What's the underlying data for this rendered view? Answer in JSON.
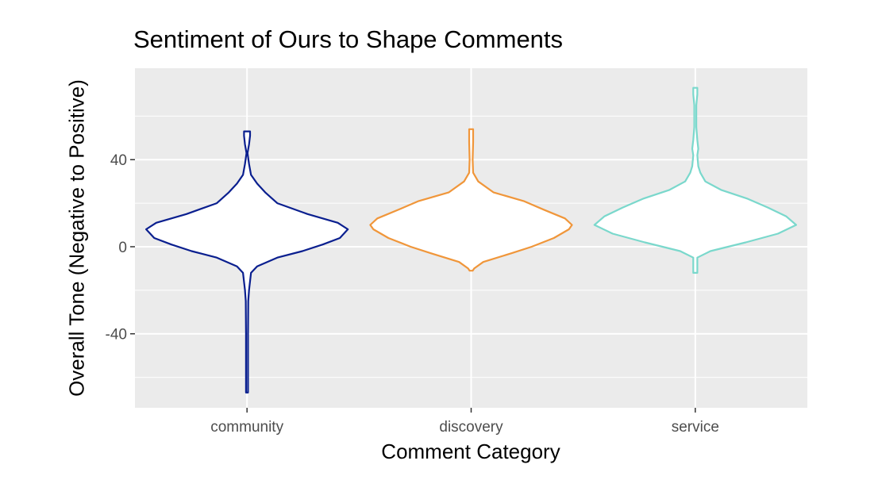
{
  "chart_data": {
    "type": "violin",
    "title": "Sentiment of Ours to Shape Comments",
    "xlabel": "Comment Category",
    "ylabel": "Overall Tone (Negative to Positive)",
    "categories": [
      "community",
      "discovery",
      "service"
    ],
    "ylim": [
      -74,
      82
    ],
    "yticks": [
      -40,
      0,
      40
    ],
    "yticklabels": [
      "-40",
      "0",
      "40"
    ],
    "grid": true,
    "legend": "none",
    "series": [
      {
        "category": "community",
        "color": "#0a1f8f",
        "min": -67,
        "max": 53,
        "density": [
          [
            -67,
            0.01
          ],
          [
            -60,
            0.01
          ],
          [
            -40,
            0.01
          ],
          [
            -25,
            0.012
          ],
          [
            -20,
            0.02
          ],
          [
            -12,
            0.04
          ],
          [
            -9,
            0.1
          ],
          [
            -5,
            0.3
          ],
          [
            -2,
            0.55
          ],
          [
            1,
            0.75
          ],
          [
            4,
            0.92
          ],
          [
            8,
            1.0
          ],
          [
            11,
            0.9
          ],
          [
            15,
            0.6
          ],
          [
            20,
            0.3
          ],
          [
            25,
            0.18
          ],
          [
            29,
            0.1
          ],
          [
            33,
            0.04
          ],
          [
            38,
            0.02
          ],
          [
            43,
            0.005
          ],
          [
            47,
            0.02
          ],
          [
            51,
            0.03
          ],
          [
            53,
            0.03
          ]
        ]
      },
      {
        "category": "discovery",
        "color": "#f0963a",
        "min": -11,
        "max": 54,
        "density": [
          [
            -11,
            0.015
          ],
          [
            -10,
            0.03
          ],
          [
            -7,
            0.12
          ],
          [
            -3,
            0.4
          ],
          [
            0,
            0.6
          ],
          [
            4,
            0.82
          ],
          [
            8,
            0.97
          ],
          [
            10,
            1.0
          ],
          [
            13,
            0.93
          ],
          [
            17,
            0.72
          ],
          [
            21,
            0.52
          ],
          [
            25,
            0.22
          ],
          [
            30,
            0.07
          ],
          [
            34,
            0.02
          ],
          [
            40,
            0.015
          ],
          [
            48,
            0.02
          ],
          [
            54,
            0.02
          ]
        ]
      },
      {
        "category": "service",
        "color": "#7ad8cc",
        "min": -12,
        "max": 73,
        "density": [
          [
            -12,
            0.02
          ],
          [
            -5,
            0.02
          ],
          [
            -2,
            0.15
          ],
          [
            2,
            0.5
          ],
          [
            6,
            0.82
          ],
          [
            10,
            1.0
          ],
          [
            14,
            0.9
          ],
          [
            18,
            0.72
          ],
          [
            22,
            0.52
          ],
          [
            26,
            0.26
          ],
          [
            30,
            0.1
          ],
          [
            34,
            0.05
          ],
          [
            37,
            0.03
          ],
          [
            42,
            0.02
          ],
          [
            45,
            0.03
          ],
          [
            49,
            0.02
          ],
          [
            55,
            0.01
          ],
          [
            65,
            0.01
          ],
          [
            70,
            0.02
          ],
          [
            73,
            0.02
          ]
        ]
      }
    ]
  }
}
